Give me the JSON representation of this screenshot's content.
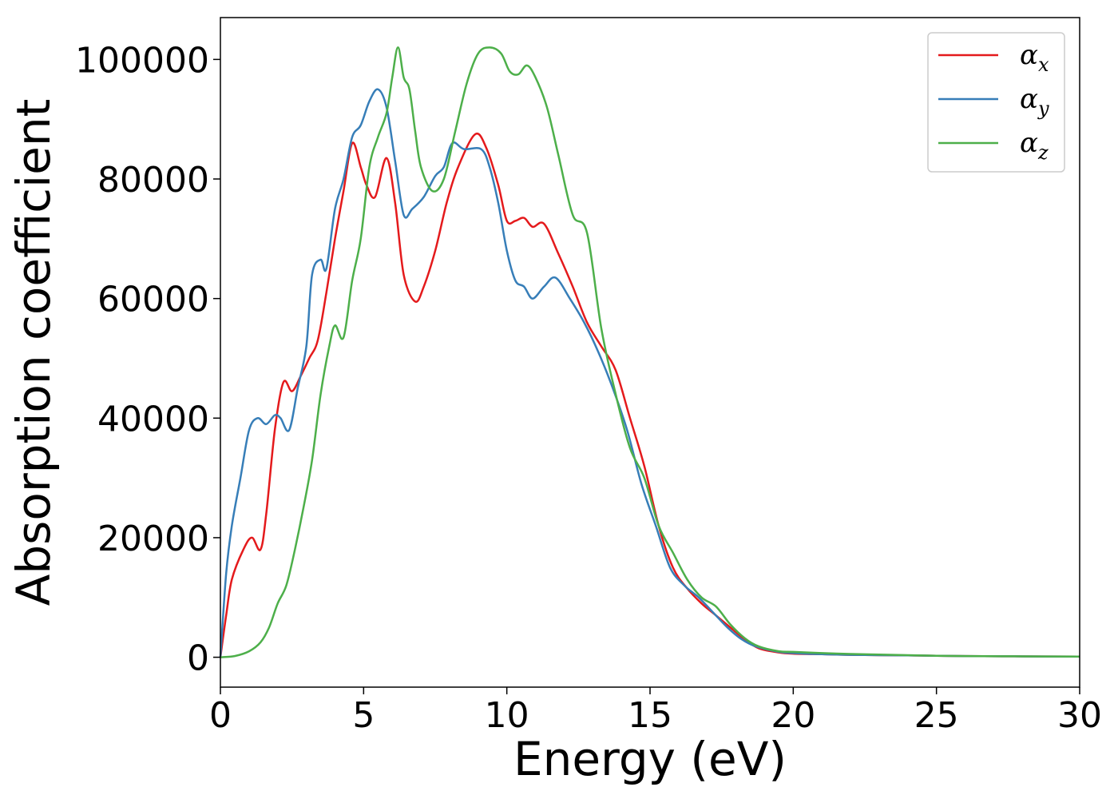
{
  "chart_data": {
    "type": "line",
    "title": "",
    "xlabel": "Energy (eV)",
    "ylabel": "Absorption coefficient",
    "xlim": [
      0,
      30
    ],
    "ylim": [
      -5000,
      107000
    ],
    "xticks": [
      0,
      5,
      10,
      15,
      20,
      25,
      30
    ],
    "yticks": [
      0,
      20000,
      40000,
      60000,
      80000,
      100000
    ],
    "grid": false,
    "legend": "top-right",
    "series": [
      {
        "name": "α",
        "subscript": "x",
        "color": "#e41a1c",
        "x": [
          0,
          0.2,
          0.4,
          0.8,
          1.1,
          1.4,
          1.6,
          1.9,
          2.2,
          2.5,
          2.8,
          3.1,
          3.4,
          3.7,
          4.0,
          4.3,
          4.6,
          4.9,
          5.1,
          5.4,
          5.8,
          6.1,
          6.4,
          6.8,
          7.1,
          7.5,
          7.9,
          8.3,
          8.9,
          9.3,
          9.7,
          10.0,
          10.3,
          10.6,
          10.9,
          11.3,
          11.8,
          12.3,
          12.8,
          13.3,
          13.8,
          14.3,
          14.8,
          15.3,
          15.8,
          16.3,
          16.8,
          17.3,
          17.8,
          18.3,
          18.8,
          19.5,
          20,
          21,
          22,
          23,
          24,
          25,
          26,
          28,
          30
        ],
        "y": [
          0,
          7000,
          13000,
          18000,
          20000,
          18000,
          24000,
          38000,
          46000,
          44500,
          47000,
          50000,
          53000,
          61000,
          70000,
          78000,
          86000,
          82000,
          79000,
          77000,
          83500,
          76000,
          64000,
          59500,
          62000,
          68000,
          76000,
          82000,
          87500,
          85000,
          79000,
          73000,
          73000,
          73500,
          72000,
          72500,
          67500,
          62000,
          56000,
          52000,
          48000,
          40000,
          32000,
          22000,
          15000,
          11500,
          9000,
          7000,
          5000,
          3000,
          1500,
          800,
          600,
          500,
          400,
          350,
          300,
          250,
          200,
          150,
          100
        ]
      },
      {
        "name": "α",
        "subscript": "y",
        "color": "#377eb8",
        "x": [
          0,
          0.2,
          0.4,
          0.7,
          1.0,
          1.3,
          1.6,
          1.9,
          2.1,
          2.4,
          2.7,
          3.0,
          3.2,
          3.5,
          3.7,
          4.0,
          4.3,
          4.6,
          4.9,
          5.2,
          5.5,
          5.8,
          6.1,
          6.4,
          6.7,
          7.1,
          7.5,
          7.8,
          8.1,
          8.5,
          9.1,
          9.4,
          9.7,
          10.0,
          10.3,
          10.6,
          10.9,
          11.3,
          11.7,
          12.2,
          12.7,
          13.2,
          13.7,
          14.2,
          14.7,
          15.2,
          15.7,
          16.2,
          16.7,
          17.2,
          17.7,
          18.2,
          18.7,
          19.5,
          20,
          21,
          22,
          23,
          24,
          25,
          26,
          28,
          30
        ],
        "y": [
          0,
          14000,
          22000,
          30000,
          38000,
          40000,
          39000,
          40500,
          40000,
          38000,
          45000,
          52000,
          64000,
          66500,
          65000,
          75000,
          80000,
          87000,
          89000,
          93000,
          95000,
          92000,
          83000,
          74000,
          75000,
          77000,
          80500,
          82000,
          86000,
          85000,
          85000,
          82000,
          76000,
          68000,
          63000,
          62000,
          60000,
          62000,
          63500,
          60000,
          56000,
          51000,
          45000,
          38000,
          29000,
          22000,
          15000,
          12000,
          10000,
          7500,
          5000,
          3000,
          1800,
          900,
          700,
          500,
          400,
          350,
          300,
          250,
          200,
          150,
          100
        ]
      },
      {
        "name": "α",
        "subscript": "z",
        "color": "#4daf4a",
        "x": [
          0,
          0.5,
          1.0,
          1.4,
          1.7,
          2.0,
          2.3,
          2.6,
          2.9,
          3.2,
          3.5,
          3.8,
          4.0,
          4.3,
          4.6,
          4.9,
          5.2,
          5.5,
          5.8,
          6.0,
          6.2,
          6.4,
          6.6,
          6.8,
          7.0,
          7.4,
          7.8,
          8.2,
          8.6,
          9.0,
          9.4,
          9.8,
          10.1,
          10.4,
          10.7,
          11.0,
          11.4,
          11.8,
          12.3,
          12.8,
          13.3,
          13.8,
          14.3,
          14.8,
          15.3,
          15.8,
          16.3,
          16.8,
          17.3,
          17.8,
          18.3,
          18.8,
          19.5,
          20,
          21,
          22,
          23,
          24,
          25,
          26,
          28,
          30
        ],
        "y": [
          0,
          200,
          1000,
          2500,
          5000,
          9000,
          12000,
          18000,
          25000,
          33000,
          44000,
          52000,
          55500,
          53500,
          63000,
          70000,
          82000,
          87000,
          91000,
          97000,
          102000,
          97000,
          95000,
          88000,
          82000,
          78000,
          80000,
          88000,
          96000,
          101000,
          102000,
          101000,
          98000,
          97500,
          99000,
          97000,
          92000,
          84000,
          74000,
          71000,
          55000,
          44000,
          35000,
          30000,
          22000,
          17500,
          13000,
          10000,
          8500,
          5500,
          3200,
          1800,
          1000,
          900,
          700,
          550,
          450,
          350,
          250,
          200,
          150,
          100
        ]
      }
    ]
  }
}
